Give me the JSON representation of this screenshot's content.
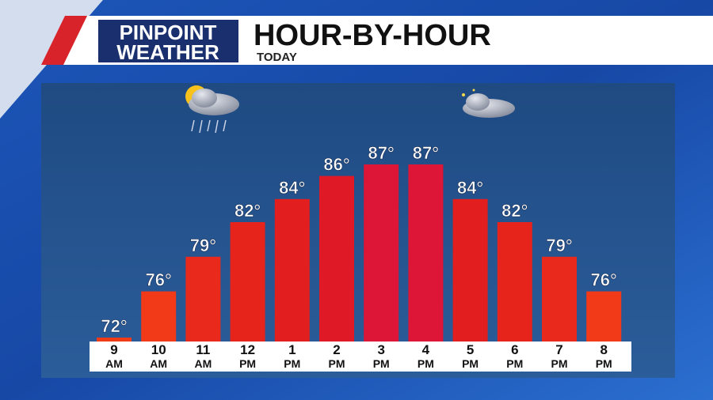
{
  "brand": [
    "PINPOINT",
    "WEATHER"
  ],
  "chart_data": {
    "type": "bar",
    "title": "HOUR-BY-HOUR",
    "subtitle": "TODAY",
    "categories": [
      "9 AM",
      "10 AM",
      "11 AM",
      "12 PM",
      "1 PM",
      "2 PM",
      "3 PM",
      "4 PM",
      "5 PM",
      "6 PM",
      "7 PM",
      "8 PM"
    ],
    "values": [
      72,
      76,
      79,
      82,
      84,
      86,
      87,
      87,
      84,
      82,
      79,
      76
    ],
    "value_labels": [
      "72°",
      "76°",
      "79°",
      "82°",
      "84°",
      "86°",
      "87°",
      "87°",
      "84°",
      "82°",
      "79°",
      "76°"
    ],
    "colors": [
      "#f03c16",
      "#f23a18",
      "#e8291b",
      "#e6241b",
      "#e21f1e",
      "#df1a26",
      "#dd1536",
      "#dd1536",
      "#e21f1e",
      "#e6241b",
      "#e8291b",
      "#f23a18"
    ]
  }
}
